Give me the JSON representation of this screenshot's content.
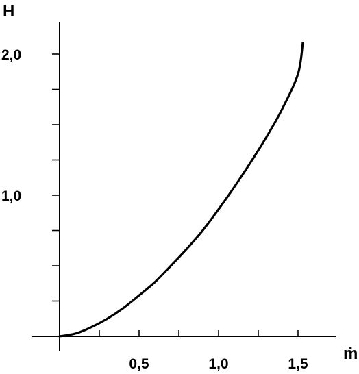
{
  "chart_data": {
    "type": "line",
    "title": "",
    "xlabel": "ṁ",
    "ylabel": "H",
    "xlim": [
      0,
      1.75
    ],
    "ylim": [
      0,
      2.15
    ],
    "x_ticks_major": [
      {
        "value": 0.5,
        "label": "0,5"
      },
      {
        "value": 1.0,
        "label": "1,0"
      },
      {
        "value": 1.5,
        "label": "1,5"
      }
    ],
    "x_ticks_minor": [
      0.25,
      0.75,
      1.25
    ],
    "y_ticks_major": [
      {
        "value": 1.0,
        "label": "1,0"
      },
      {
        "value": 2.0,
        "label": "2,0"
      }
    ],
    "y_ticks_minor": [
      0.25,
      0.5,
      0.75,
      1.25,
      1.5,
      1.75
    ],
    "grid": false,
    "series": [
      {
        "name": "",
        "color": "#000000",
        "x": [
          0,
          0.1,
          0.2,
          0.3,
          0.4,
          0.5,
          0.6,
          0.7,
          0.8,
          0.9,
          1.0,
          1.1,
          1.2,
          1.3,
          1.4,
          1.5,
          1.53
        ],
        "y": [
          0,
          0.02,
          0.065,
          0.125,
          0.2,
          0.29,
          0.385,
          0.5,
          0.62,
          0.75,
          0.9,
          1.06,
          1.23,
          1.41,
          1.61,
          1.86,
          2.08
        ]
      }
    ]
  }
}
